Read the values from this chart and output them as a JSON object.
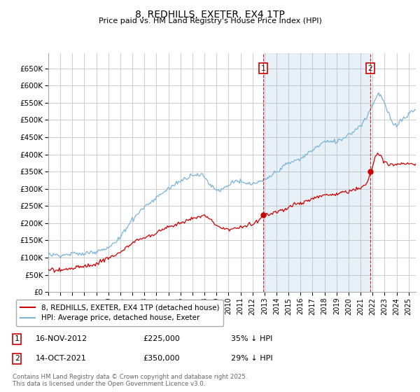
{
  "title": "8, REDHILLS, EXETER, EX4 1TP",
  "subtitle": "Price paid vs. HM Land Registry's House Price Index (HPI)",
  "ytick_labels": [
    "£0",
    "£50K",
    "£100K",
    "£150K",
    "£200K",
    "£250K",
    "£300K",
    "£350K",
    "£400K",
    "£450K",
    "£500K",
    "£550K",
    "£600K",
    "£650K"
  ],
  "yticks": [
    0,
    50000,
    100000,
    150000,
    200000,
    250000,
    300000,
    350000,
    400000,
    450000,
    500000,
    550000,
    600000,
    650000
  ],
  "hpi_color": "#7ab4d8",
  "hpi_fill_color": "#d6eaf8",
  "price_color": "#cc0000",
  "sale1_x": 2012.875,
  "sale1_price": 225000,
  "sale1_date": "16-NOV-2012",
  "sale1_pct": "35% ↓ HPI",
  "sale2_x": 2021.792,
  "sale2_price": 350000,
  "sale2_date": "14-OCT-2021",
  "sale2_pct": "29% ↓ HPI",
  "legend_label1": "8, REDHILLS, EXETER, EX4 1TP (detached house)",
  "legend_label2": "HPI: Average price, detached house, Exeter",
  "footnote1": "Contains HM Land Registry data © Crown copyright and database right 2025.",
  "footnote2": "This data is licensed under the Open Government Licence v3.0.",
  "bg_color": "#ffffff",
  "grid_color": "#cccccc"
}
